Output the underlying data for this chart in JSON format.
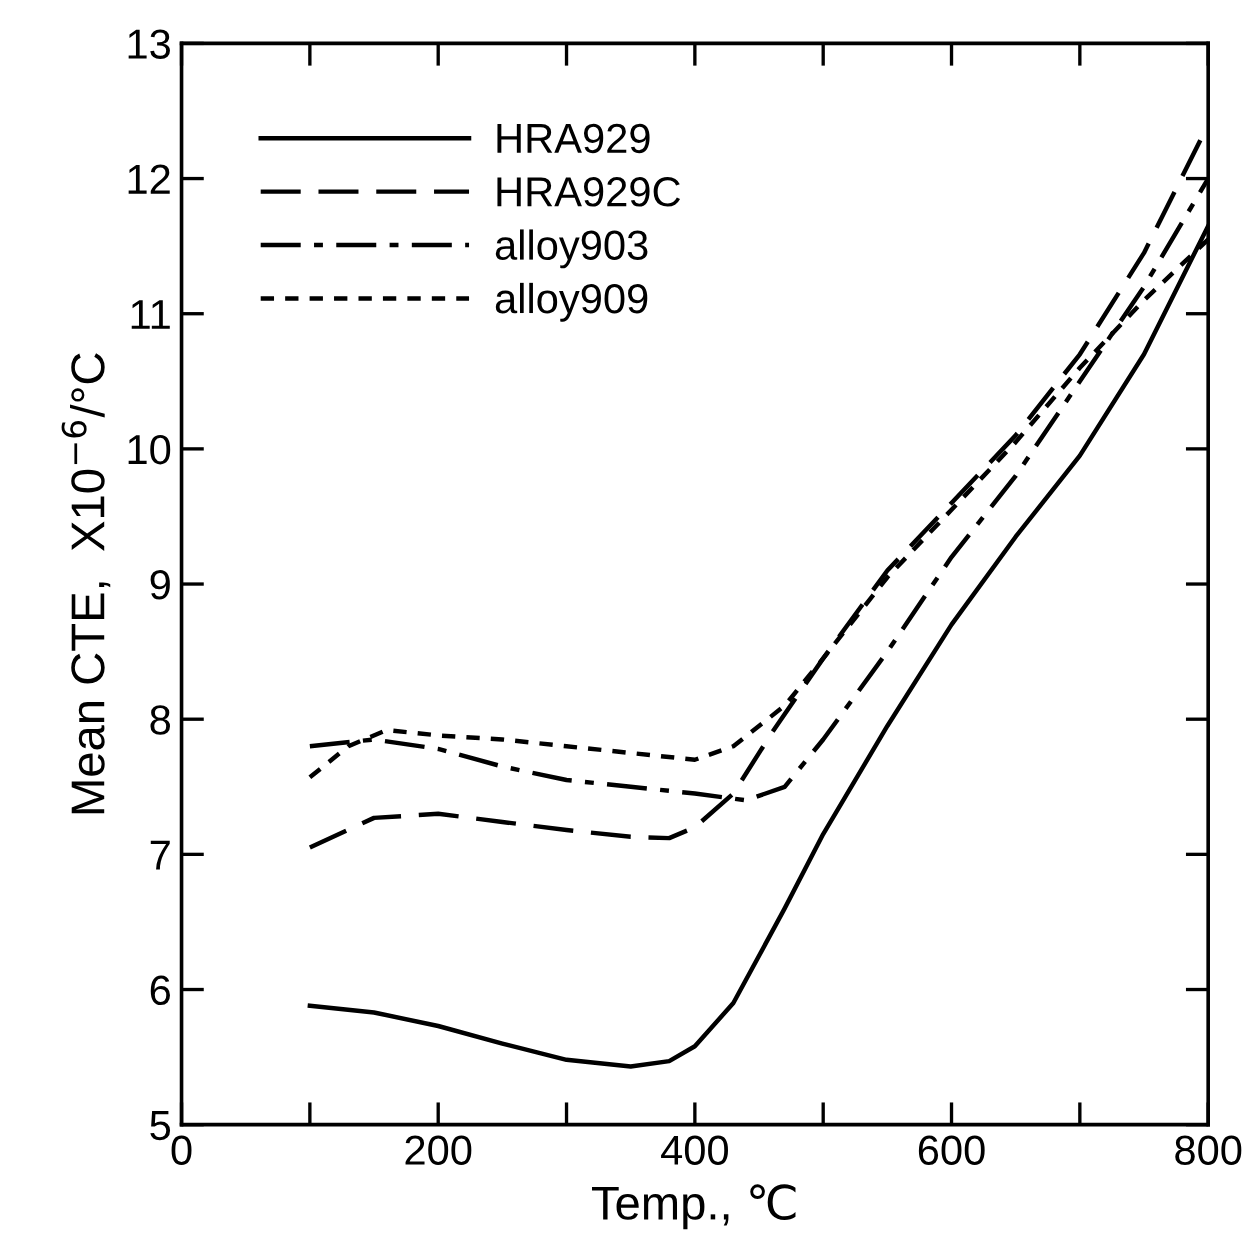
{
  "chart_data": {
    "type": "line",
    "xlabel": "Temp., ℃",
    "ylabel": "Mean CTE,  X10$^{−6}$/°C",
    "xlim": [
      0,
      800
    ],
    "xticks": [
      0,
      {
        "value": 100,
        "label": null
      },
      200,
      {
        "value": 300,
        "label": null
      },
      400,
      {
        "value": 500,
        "label": null
      },
      600,
      {
        "value": 700,
        "label": null
      },
      800
    ],
    "ylim": [
      5,
      13
    ],
    "yticks": [
      5,
      6,
      7,
      8,
      9,
      10,
      11,
      12,
      13
    ],
    "grid": false,
    "legend": "top left",
    "marker": "none",
    "series": [
      {
        "name": "HRA929",
        "color": "#000000",
        "line_style": "solid",
        "x": [
          100,
          150,
          200,
          250,
          300,
          350,
          380,
          400,
          430,
          470,
          500,
          550,
          600,
          650,
          700,
          750,
          800
        ],
        "values": [
          5.88,
          5.83,
          5.73,
          5.6,
          5.48,
          5.43,
          5.47,
          5.58,
          5.9,
          6.6,
          7.15,
          7.95,
          8.7,
          9.35,
          9.95,
          10.7,
          11.65
        ]
      },
      {
        "name": "HRA929C",
        "color": "#000000",
        "line_style": "dashed",
        "x": [
          100,
          150,
          200,
          250,
          300,
          350,
          380,
          400,
          430,
          460,
          500,
          550,
          600,
          650,
          700,
          750,
          800
        ],
        "values": [
          7.05,
          7.27,
          7.3,
          7.24,
          7.18,
          7.13,
          7.12,
          7.2,
          7.45,
          7.9,
          8.45,
          9.1,
          9.6,
          10.1,
          10.7,
          11.45,
          12.4
        ]
      },
      {
        "name": "alloy903",
        "color": "#000000",
        "line_style": "dashdot",
        "x": [
          100,
          150,
          200,
          250,
          300,
          350,
          400,
          440,
          470,
          500,
          550,
          600,
          650,
          700,
          750,
          800
        ],
        "values": [
          7.8,
          7.85,
          7.78,
          7.65,
          7.55,
          7.5,
          7.45,
          7.4,
          7.5,
          7.85,
          8.5,
          9.2,
          9.8,
          10.5,
          11.2,
          12.0
        ]
      },
      {
        "name": "alloy909",
        "color": "#000000",
        "line_style": "dotted",
        "x": [
          100,
          130,
          160,
          200,
          250,
          300,
          350,
          400,
          430,
          470,
          500,
          550,
          600,
          650,
          700,
          750,
          800
        ],
        "values": [
          7.57,
          7.8,
          7.92,
          7.88,
          7.85,
          7.8,
          7.75,
          7.7,
          7.8,
          8.1,
          8.45,
          9.05,
          9.55,
          10.05,
          10.6,
          11.1,
          11.55
        ]
      }
    ]
  }
}
